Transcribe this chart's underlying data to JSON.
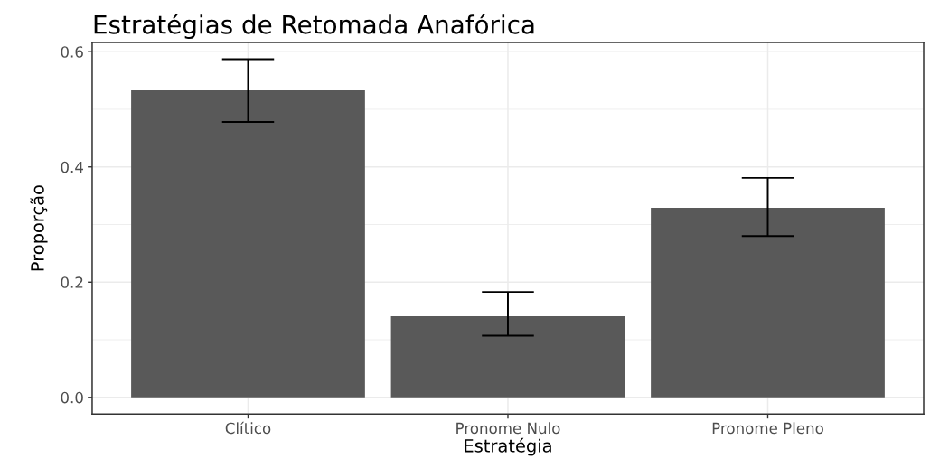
{
  "chart_data": {
    "type": "bar",
    "title": "Estratégias de Retomada Anafórica",
    "xlabel": "Estratégia",
    "ylabel": "Proporção",
    "categories": [
      "Clítico",
      "Pronome Nulo",
      "Pronome Pleno"
    ],
    "values": [
      0.533,
      0.141,
      0.329
    ],
    "color": "#595959",
    "errors": [
      [
        0.478,
        0.587
      ],
      [
        0.107,
        0.183
      ],
      [
        0.28,
        0.381
      ]
    ],
    "ylim": [
      -0.029,
      0.616
    ],
    "yticks": [
      {
        "value": 0,
        "label": "0.0"
      },
      0.2,
      0.4,
      0.6
    ],
    "grid": true
  }
}
